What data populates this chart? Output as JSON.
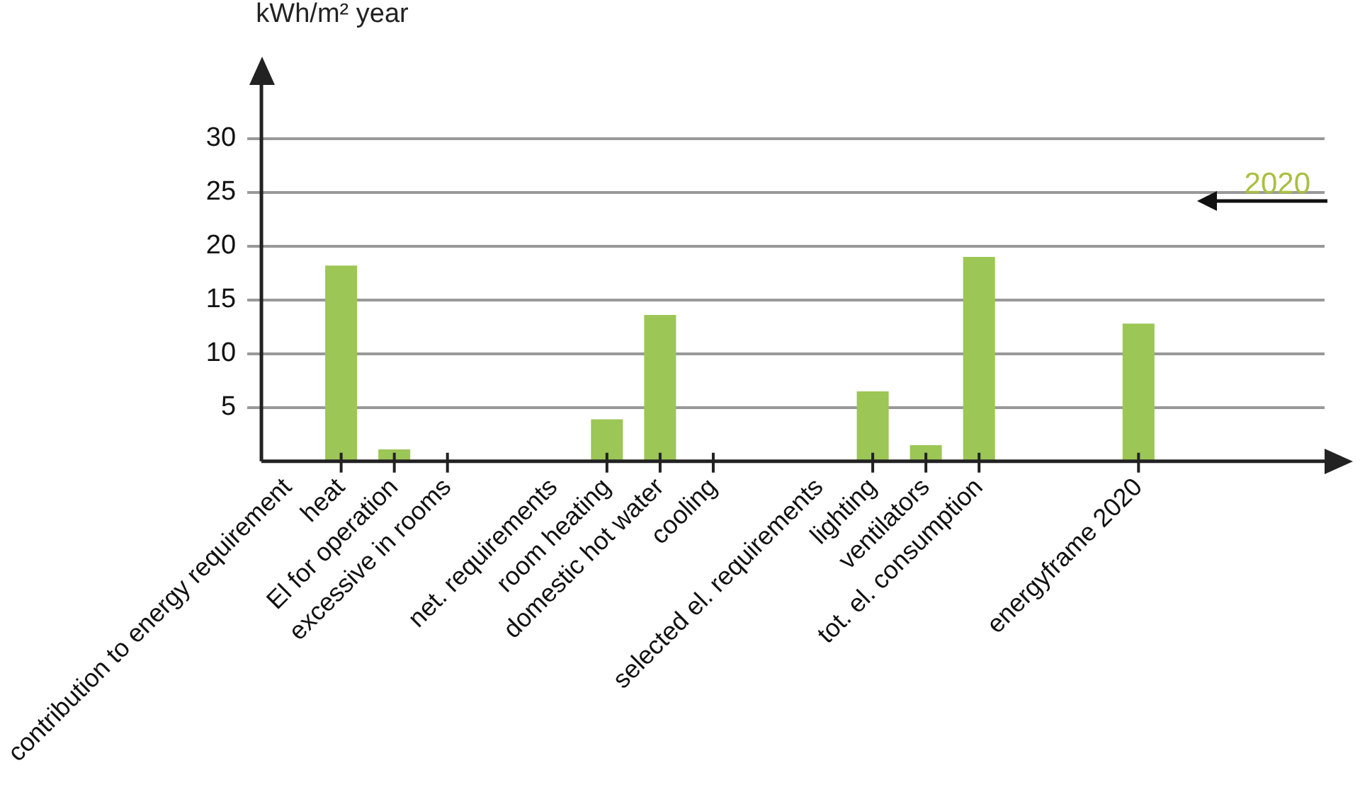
{
  "chart_data": {
    "type": "bar",
    "ylabel": "kWh/m² year",
    "categories": [
      "contribution to energy requirement",
      "heat",
      "El for operation",
      "excessive in rooms",
      null,
      "net. requirements",
      "room heating",
      "domestic hot water",
      "cooling",
      null,
      "selected el. requirements",
      "lighting",
      "ventilators",
      "tot. el. consumption",
      null,
      null,
      "energyframe 2020",
      null,
      null,
      null
    ],
    "series": [
      {
        "color": "#9cc655",
        "values": [
          null,
          18.2,
          1.1,
          0,
          null,
          null,
          3.9,
          13.6,
          0,
          null,
          null,
          6.5,
          1.5,
          19.0,
          null,
          null,
          12.8,
          null,
          null,
          null
        ]
      }
    ],
    "ylim": [
      0,
      35
    ],
    "yticks": [
      5,
      10,
      15,
      20,
      25,
      30
    ],
    "grid": "y",
    "annotations": [
      "2020"
    ]
  }
}
